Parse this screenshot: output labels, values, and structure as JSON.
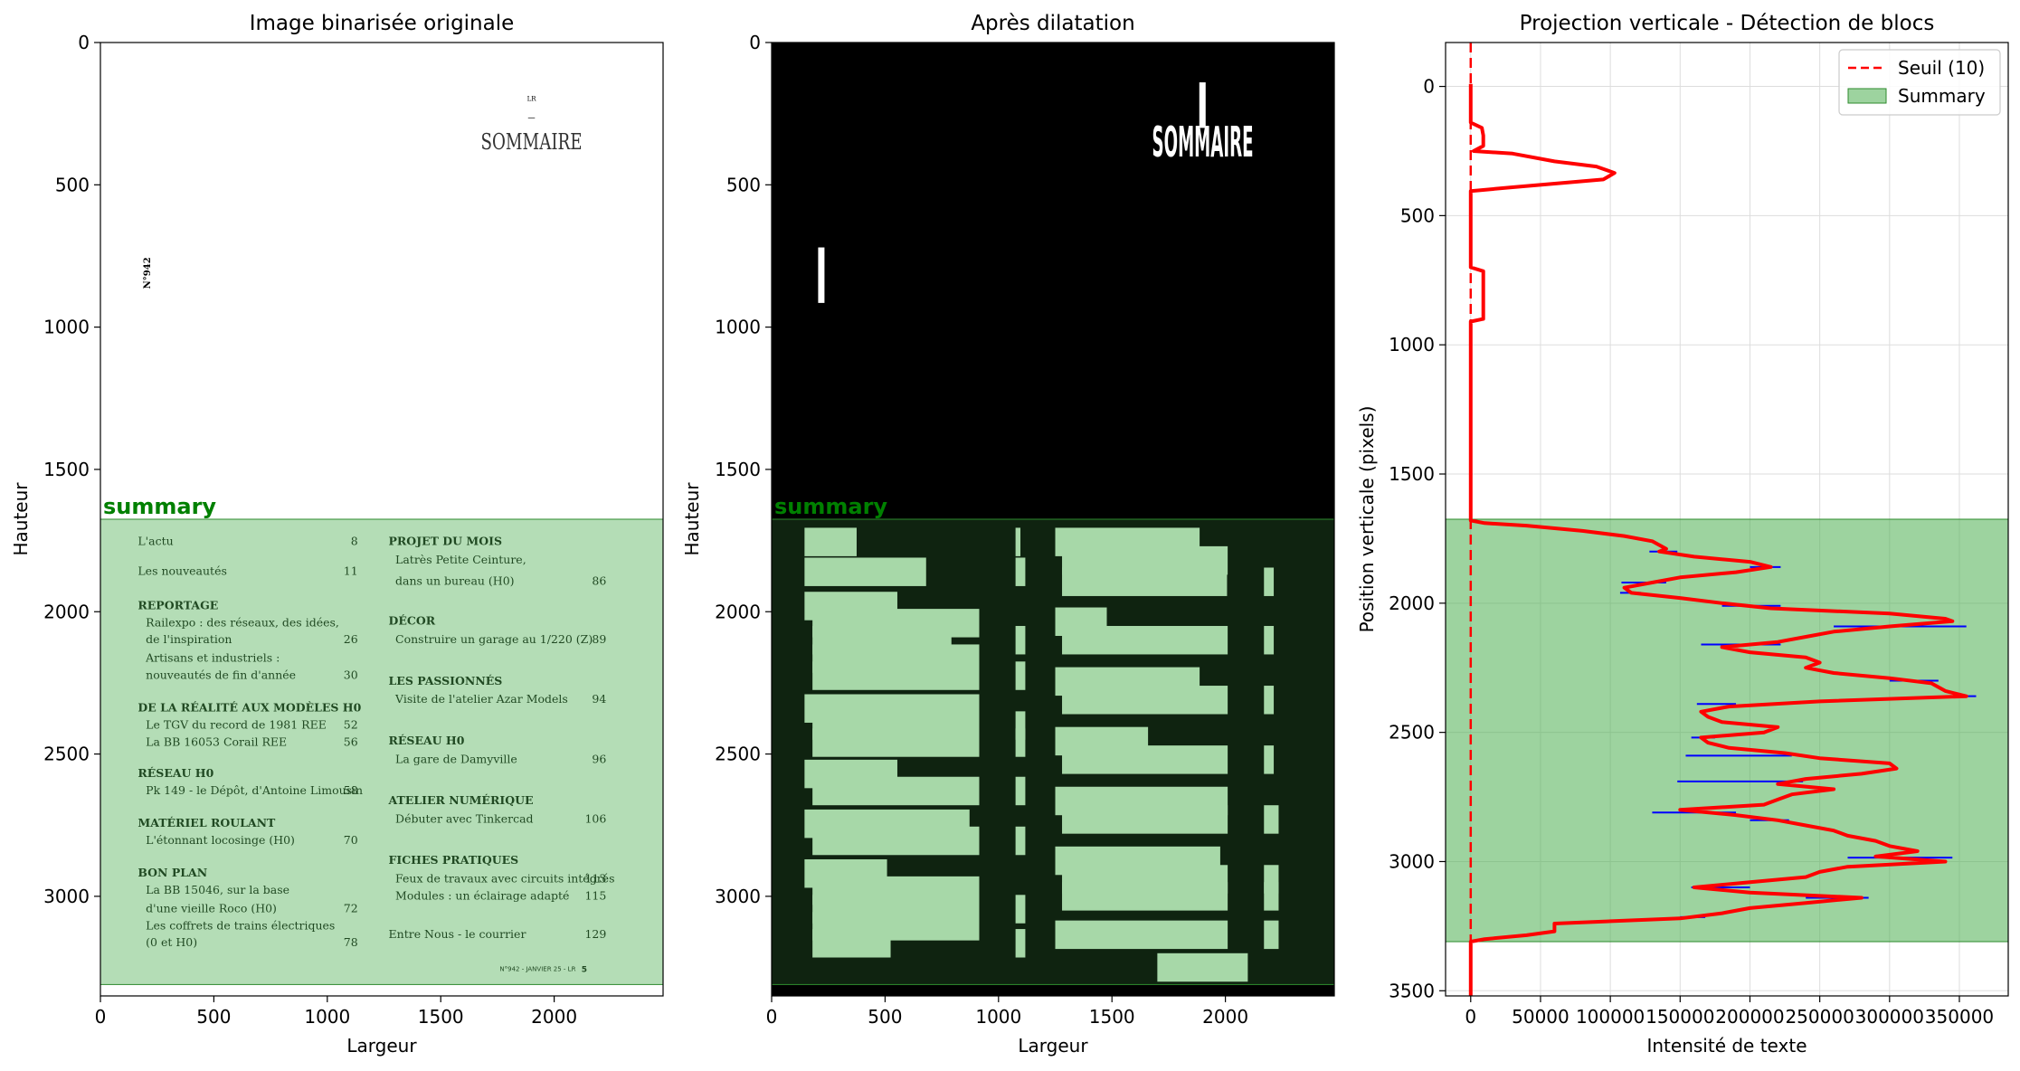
{
  "panel1": {
    "title": "Image binarisée originale",
    "xlabel": "Largeur",
    "ylabel": "Hauteur",
    "xticks": [
      0,
      500,
      1000,
      1500,
      2000
    ],
    "yticks": [
      0,
      500,
      1000,
      1500,
      2000,
      2500,
      3000
    ],
    "xlim": [
      0,
      2480
    ],
    "ylim": [
      0,
      3350
    ],
    "region_label": "summary",
    "region": {
      "y0": 1675,
      "y1": 3310
    },
    "doc": {
      "top_mark": "LR",
      "heading": "SOMMAIRE",
      "side_label": "N°942",
      "footer_text": "N°942 - JANVIER 25 - LR",
      "footer_page": "5",
      "left_column": [
        {
          "text": "L'actu",
          "page": "8",
          "bold": false,
          "indent": false,
          "y": 1750
        },
        {
          "text": "Les nouveautés",
          "page": "11",
          "bold": false,
          "indent": false,
          "y": 1855
        },
        {
          "text": "REPORTAGE",
          "page": "",
          "bold": true,
          "indent": false,
          "y": 1975
        },
        {
          "text": "Railexpo : des réseaux, des idées,",
          "page": "",
          "bold": false,
          "indent": true,
          "y": 2035
        },
        {
          "text": "de l'inspiration",
          "page": "26",
          "bold": false,
          "indent": true,
          "y": 2095
        },
        {
          "text": "Artisans et industriels :",
          "page": "",
          "bold": false,
          "indent": true,
          "y": 2160
        },
        {
          "text": "nouveautés de fin d'année",
          "page": "30",
          "bold": false,
          "indent": true,
          "y": 2220
        },
        {
          "text": "DE LA RÉALITÉ AUX MODÈLES H0",
          "page": "",
          "bold": true,
          "indent": false,
          "y": 2335
        },
        {
          "text": "Le TGV du record de 1981 REE",
          "page": "52",
          "bold": false,
          "indent": true,
          "y": 2395
        },
        {
          "text": "La BB 16053 Corail REE",
          "page": "56",
          "bold": false,
          "indent": true,
          "y": 2455
        },
        {
          "text": "RÉSEAU H0",
          "page": "",
          "bold": true,
          "indent": false,
          "y": 2565
        },
        {
          "text": "Pk 149 - le Dépôt, d'Antoine Limousin",
          "page": "58",
          "bold": false,
          "indent": true,
          "y": 2625
        },
        {
          "text": "MATÉRIEL ROULANT",
          "page": "",
          "bold": true,
          "indent": false,
          "y": 2740
        },
        {
          "text": "L'étonnant locosinge (H0)",
          "page": "70",
          "bold": false,
          "indent": true,
          "y": 2800
        },
        {
          "text": "BON PLAN",
          "page": "",
          "bold": true,
          "indent": false,
          "y": 2915
        },
        {
          "text": "La BB 15046, sur la base",
          "page": "",
          "bold": false,
          "indent": true,
          "y": 2975
        },
        {
          "text": "d'une vieille Roco (H0)",
          "page": "72",
          "bold": false,
          "indent": true,
          "y": 3040
        },
        {
          "text": "Les coffrets de trains électriques",
          "page": "",
          "bold": false,
          "indent": true,
          "y": 3100
        },
        {
          "text": "(0 et H0)",
          "page": "78",
          "bold": false,
          "indent": true,
          "y": 3160
        }
      ],
      "right_column": [
        {
          "text": "PROJET DU MOIS",
          "page": "",
          "bold": true,
          "indent": false,
          "y": 1750
        },
        {
          "text": "Latrès Petite Ceinture,",
          "page": "",
          "bold": false,
          "indent": true,
          "y": 1815
        },
        {
          "text": "dans un bureau (H0)",
          "page": "86",
          "bold": false,
          "indent": true,
          "y": 1890
        },
        {
          "text": "DÉCOR",
          "page": "",
          "bold": true,
          "indent": false,
          "y": 2030
        },
        {
          "text": "Construire un garage au 1/220 (Z)",
          "page": "89",
          "bold": false,
          "indent": true,
          "y": 2095
        },
        {
          "text": "LES PASSIONNÉS",
          "page": "",
          "bold": true,
          "indent": false,
          "y": 2240
        },
        {
          "text": "Visite de l'atelier Azar Models",
          "page": "94",
          "bold": false,
          "indent": true,
          "y": 2305
        },
        {
          "text": "RÉSEAU H0",
          "page": "",
          "bold": true,
          "indent": false,
          "y": 2450
        },
        {
          "text": "La gare de Damyville",
          "page": "96",
          "bold": false,
          "indent": true,
          "y": 2515
        },
        {
          "text": "ATELIER NUMÉRIQUE",
          "page": "",
          "bold": true,
          "indent": false,
          "y": 2660
        },
        {
          "text": "Débuter avec Tinkercad",
          "page": "106",
          "bold": false,
          "indent": true,
          "y": 2725
        },
        {
          "text": "FICHES PRATIQUES",
          "page": "",
          "bold": true,
          "indent": false,
          "y": 2870
        },
        {
          "text": "Feux de travaux avec circuits intégrés",
          "page": "113",
          "bold": false,
          "indent": true,
          "y": 2935
        },
        {
          "text": "Modules  : un éclairage adapté",
          "page": "115",
          "bold": false,
          "indent": true,
          "y": 2995
        },
        {
          "text": "Entre Nous - le courrier",
          "page": "129",
          "bold": false,
          "indent": false,
          "y": 3130
        }
      ]
    }
  },
  "panel2": {
    "title": "Après dilatation",
    "xlabel": "Largeur",
    "ylabel": "Hauteur",
    "xticks": [
      0,
      500,
      1000,
      1500,
      2000
    ],
    "yticks": [
      0,
      500,
      1000,
      1500,
      2000,
      2500,
      3000
    ],
    "region_label": "summary",
    "heading": "SOMMAIRE"
  },
  "chart_data": {
    "type": "line",
    "title": "Projection verticale - Détection de blocs",
    "xlabel": "Intensité de texte",
    "ylabel": "Position verticale (pixels)",
    "xlim": [
      -18000,
      385000
    ],
    "ylim": [
      3520,
      -170
    ],
    "xticks": [
      0,
      50000,
      100000,
      150000,
      200000,
      250000,
      300000,
      350000
    ],
    "yticks": [
      0,
      500,
      1000,
      1500,
      2000,
      2500,
      3000,
      3500
    ],
    "grid": true,
    "legend_position": "top-right",
    "threshold": {
      "name": "Seuil (10)",
      "value": 10,
      "color": "#ff0000"
    },
    "region": {
      "name": "Summary",
      "y0": 1675,
      "y1": 3310,
      "color": "#4caf50"
    },
    "series": [
      {
        "color": "#ff0000",
        "profile": [
          [
            -10,
            0
          ],
          [
            140,
            0
          ],
          [
            160,
            8000
          ],
          [
            190,
            9000
          ],
          [
            230,
            9000
          ],
          [
            250,
            2000
          ],
          [
            260,
            30000
          ],
          [
            290,
            60000
          ],
          [
            310,
            90000
          ],
          [
            335,
            103000
          ],
          [
            360,
            95000
          ],
          [
            390,
            30000
          ],
          [
            405,
            0
          ],
          [
            700,
            0
          ],
          [
            715,
            9000
          ],
          [
            900,
            9000
          ],
          [
            910,
            0
          ],
          [
            1680,
            0
          ],
          [
            1690,
            10000
          ],
          [
            1700,
            40000
          ],
          [
            1720,
            80000
          ],
          [
            1740,
            110000
          ],
          [
            1760,
            130000
          ],
          [
            1790,
            140000
          ],
          [
            1800,
            135000
          ],
          [
            1820,
            160000
          ],
          [
            1840,
            200000
          ],
          [
            1860,
            215000
          ],
          [
            1880,
            190000
          ],
          [
            1900,
            150000
          ],
          [
            1920,
            130000
          ],
          [
            1940,
            110000
          ],
          [
            1960,
            115000
          ],
          [
            1980,
            150000
          ],
          [
            2000,
            180000
          ],
          [
            2020,
            215000
          ],
          [
            2040,
            300000
          ],
          [
            2060,
            340000
          ],
          [
            2070,
            345000
          ],
          [
            2090,
            300000
          ],
          [
            2110,
            260000
          ],
          [
            2130,
            240000
          ],
          [
            2150,
            220000
          ],
          [
            2170,
            180000
          ],
          [
            2190,
            200000
          ],
          [
            2210,
            240000
          ],
          [
            2230,
            250000
          ],
          [
            2250,
            240000
          ],
          [
            2270,
            260000
          ],
          [
            2290,
            300000
          ],
          [
            2310,
            330000
          ],
          [
            2340,
            340000
          ],
          [
            2360,
            355000
          ],
          [
            2380,
            250000
          ],
          [
            2400,
            185000
          ],
          [
            2420,
            165000
          ],
          [
            2440,
            170000
          ],
          [
            2460,
            180000
          ],
          [
            2480,
            220000
          ],
          [
            2500,
            210000
          ],
          [
            2520,
            165000
          ],
          [
            2540,
            170000
          ],
          [
            2560,
            185000
          ],
          [
            2580,
            225000
          ],
          [
            2600,
            250000
          ],
          [
            2620,
            300000
          ],
          [
            2640,
            305000
          ],
          [
            2660,
            280000
          ],
          [
            2680,
            240000
          ],
          [
            2700,
            220000
          ],
          [
            2720,
            260000
          ],
          [
            2740,
            230000
          ],
          [
            2760,
            220000
          ],
          [
            2780,
            210000
          ],
          [
            2800,
            150000
          ],
          [
            2820,
            190000
          ],
          [
            2840,
            220000
          ],
          [
            2860,
            240000
          ],
          [
            2880,
            260000
          ],
          [
            2900,
            270000
          ],
          [
            2920,
            290000
          ],
          [
            2940,
            300000
          ],
          [
            2960,
            320000
          ],
          [
            2980,
            290000
          ],
          [
            3000,
            340000
          ],
          [
            3020,
            270000
          ],
          [
            3040,
            250000
          ],
          [
            3060,
            240000
          ],
          [
            3080,
            200000
          ],
          [
            3100,
            160000
          ],
          [
            3120,
            200000
          ],
          [
            3140,
            280000
          ],
          [
            3160,
            240000
          ],
          [
            3180,
            200000
          ],
          [
            3200,
            180000
          ],
          [
            3220,
            150000
          ],
          [
            3240,
            60000
          ],
          [
            3270,
            60000
          ],
          [
            3285,
            40000
          ],
          [
            3300,
            10000
          ],
          [
            3310,
            0
          ],
          [
            3520,
            0
          ]
        ]
      },
      {
        "color": "#0000ff",
        "spikes": [
          [
            1800,
            128000,
            148000
          ],
          [
            1860,
            200000,
            222000
          ],
          [
            1920,
            108000,
            140000
          ],
          [
            1960,
            107000,
            122000
          ],
          [
            2010,
            180000,
            222000
          ],
          [
            2090,
            260000,
            355000
          ],
          [
            2160,
            165000,
            222000
          ],
          [
            2300,
            300000,
            335000
          ],
          [
            2360,
            340000,
            362000
          ],
          [
            2390,
            162000,
            190000
          ],
          [
            2520,
            158000,
            175000
          ],
          [
            2590,
            154000,
            230000
          ],
          [
            2690,
            148000,
            238000
          ],
          [
            2810,
            130000,
            190000
          ],
          [
            2840,
            200000,
            228000
          ],
          [
            2985,
            270000,
            345000
          ],
          [
            3100,
            158000,
            200000
          ],
          [
            3140,
            240000,
            285000
          ],
          [
            3215,
            150000,
            168000
          ]
        ]
      }
    ]
  }
}
